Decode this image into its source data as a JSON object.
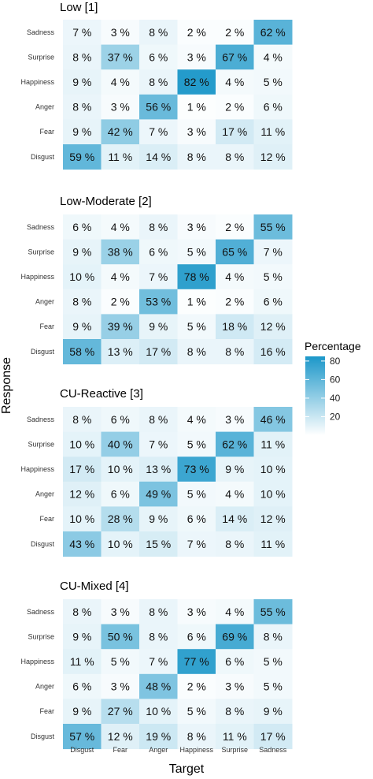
{
  "chart_data": {
    "type": "heatmap",
    "xlabel": "Target",
    "ylabel": "Response",
    "x_categories": [
      "Disgust",
      "Fear",
      "Anger",
      "Happiness",
      "Surprise",
      "Sadness"
    ],
    "y_categories": [
      "Sadness",
      "Surprise",
      "Happiness",
      "Anger",
      "Fear",
      "Disgust"
    ],
    "value_suffix": " %",
    "legend": {
      "title": "Percentage",
      "ticks": [
        20,
        40,
        60,
        80
      ],
      "range": [
        0,
        85
      ],
      "low_color": "#ffffff",
      "high_color": "#1c97c9"
    },
    "panels": [
      {
        "title": "Low [1]",
        "values": [
          [
            7,
            3,
            8,
            2,
            2,
            62
          ],
          [
            8,
            37,
            6,
            3,
            67,
            4
          ],
          [
            9,
            4,
            8,
            82,
            4,
            5
          ],
          [
            8,
            3,
            56,
            1,
            2,
            6
          ],
          [
            9,
            42,
            7,
            3,
            17,
            11
          ],
          [
            59,
            11,
            14,
            8,
            8,
            12
          ]
        ]
      },
      {
        "title": "Low-Moderate [2]",
        "values": [
          [
            6,
            4,
            8,
            3,
            2,
            55
          ],
          [
            9,
            38,
            6,
            5,
            65,
            7
          ],
          [
            10,
            4,
            7,
            78,
            4,
            5
          ],
          [
            8,
            2,
            53,
            1,
            2,
            6
          ],
          [
            9,
            39,
            9,
            5,
            18,
            12
          ],
          [
            58,
            13,
            17,
            8,
            8,
            16
          ]
        ]
      },
      {
        "title": "CU-Reactive [3]",
        "values": [
          [
            8,
            6,
            8,
            4,
            3,
            46
          ],
          [
            10,
            40,
            7,
            5,
            62,
            11
          ],
          [
            17,
            10,
            13,
            73,
            9,
            10
          ],
          [
            12,
            6,
            49,
            5,
            4,
            10
          ],
          [
            10,
            28,
            9,
            6,
            14,
            12
          ],
          [
            43,
            10,
            15,
            7,
            8,
            11
          ]
        ]
      },
      {
        "title": "CU-Mixed [4]",
        "values": [
          [
            8,
            3,
            8,
            3,
            4,
            55
          ],
          [
            9,
            50,
            8,
            6,
            69,
            8
          ],
          [
            11,
            5,
            7,
            77,
            6,
            5
          ],
          [
            6,
            3,
            48,
            2,
            3,
            5
          ],
          [
            9,
            27,
            10,
            5,
            8,
            9
          ],
          [
            57,
            12,
            19,
            8,
            11,
            17
          ]
        ]
      }
    ]
  }
}
